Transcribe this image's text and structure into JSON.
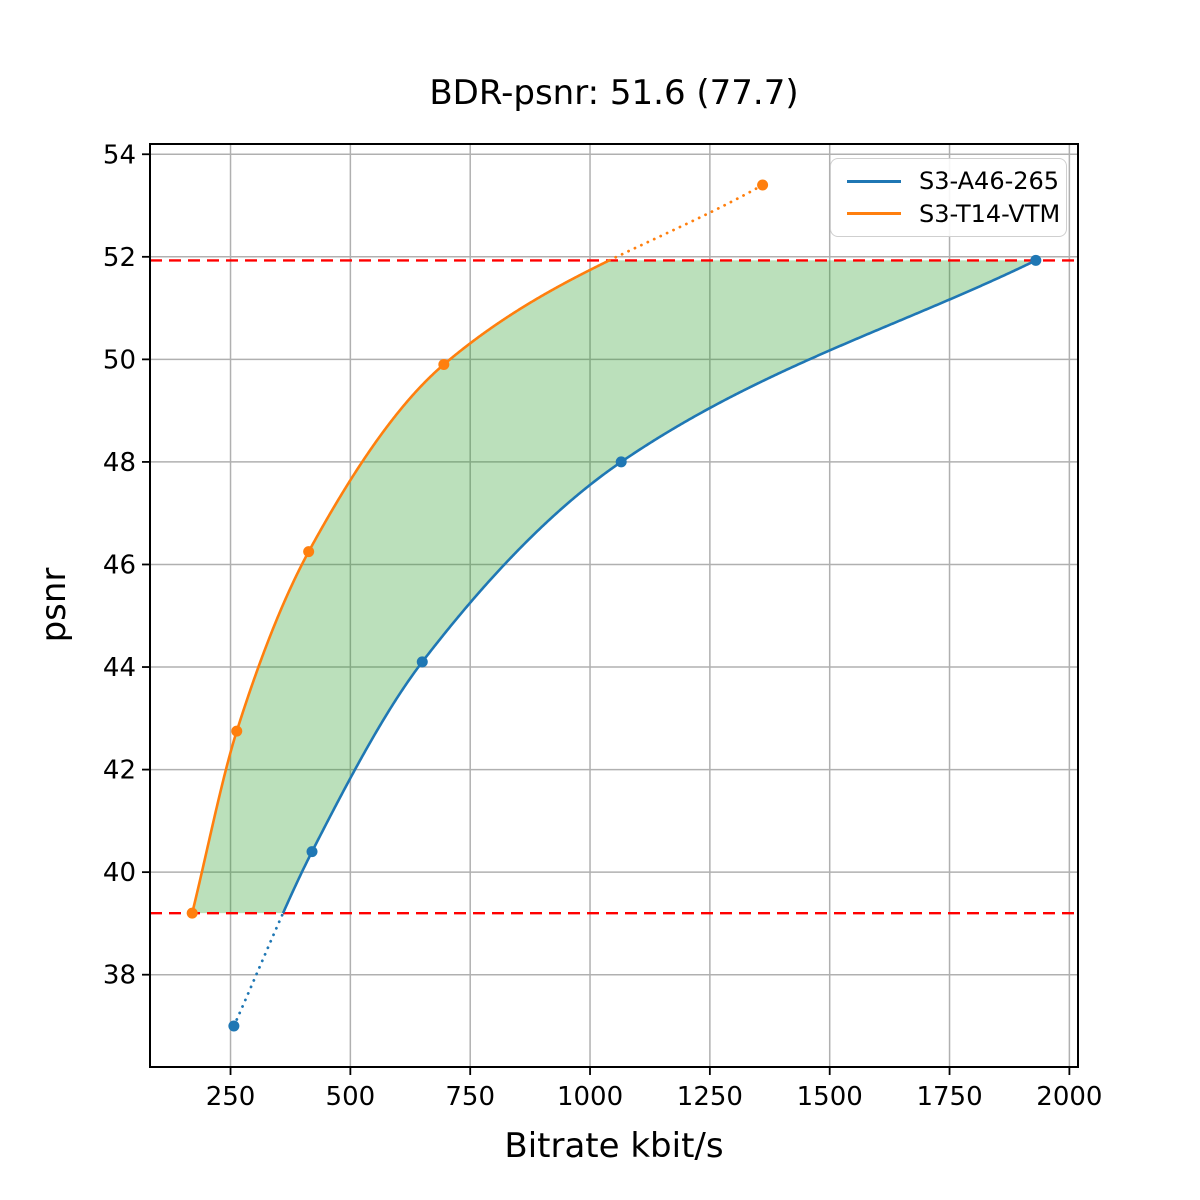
{
  "chart_data": {
    "type": "line",
    "title": "BDR-psnr: 51.6 (77.7)",
    "xlabel": "Bitrate kbit/s",
    "ylabel": "psnr",
    "xlim": [
      82,
      2018
    ],
    "ylim": [
      36.2,
      54.2
    ],
    "xticks": [
      250,
      500,
      750,
      1000,
      1250,
      1500,
      1750,
      2000
    ],
    "yticks": [
      38,
      40,
      42,
      44,
      46,
      48,
      50,
      52,
      54
    ],
    "grid": true,
    "legend_position": "upper right",
    "series": [
      {
        "name": "S3-A46-265",
        "color": "#1f77b4",
        "marker": "circle",
        "x": [
          257,
          420,
          650,
          1065,
          1930
        ],
        "y": [
          37.0,
          40.4,
          44.1,
          48.0,
          51.93
        ],
        "dotted_segment": "below lower hline"
      },
      {
        "name": "S3-T14-VTM",
        "color": "#ff7f0e",
        "marker": "circle",
        "x": [
          170,
          263,
          413,
          695,
          1360
        ],
        "y": [
          39.2,
          42.75,
          46.25,
          49.9,
          53.4
        ],
        "dotted_segment": "above upper hline"
      }
    ],
    "hlines": [
      {
        "y": 39.2,
        "color": "#ff0000",
        "style": "dashed"
      },
      {
        "y": 51.93,
        "color": "#ff0000",
        "style": "dashed"
      }
    ],
    "shaded_region": {
      "color": "#2ca02c",
      "alpha": 0.32,
      "description": "area between the two rate-distortion curves clipped to the hline band"
    },
    "style": {
      "grid_color": "#b0b0b0",
      "spine_color": "#000000",
      "tick_color": "#000000",
      "text_color": "#000000",
      "background": "#ffffff"
    }
  }
}
